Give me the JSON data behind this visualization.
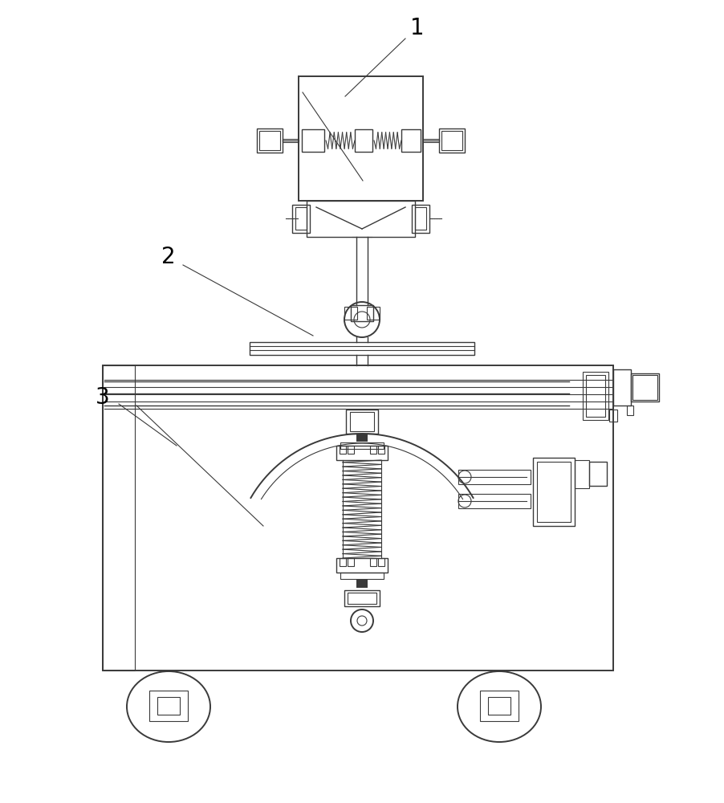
{
  "bg_color": "#ffffff",
  "line_color": "#3a3a3a",
  "lw_main": 1.4,
  "lw_thin": 0.8,
  "lw_med": 1.0,
  "labels": [
    "1",
    "2",
    "3"
  ],
  "label_fontsize": 20
}
